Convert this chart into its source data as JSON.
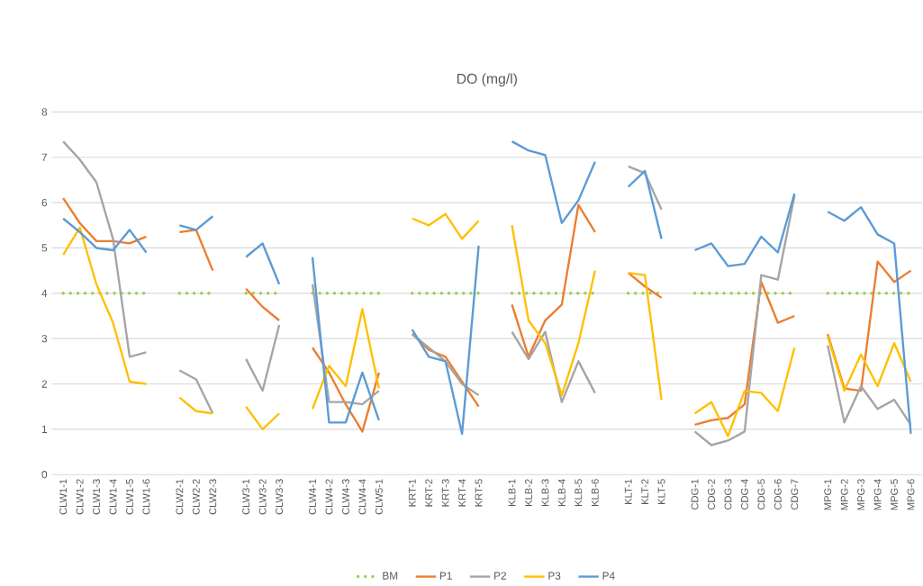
{
  "chart_data": {
    "type": "line",
    "title": "DO (mg/l)",
    "categories": [
      "CLW1-1",
      "CLW1-2",
      "CLW1-3",
      "CLW1-4",
      "CLW1-5",
      "CLW1-6",
      null,
      "CLW2-1",
      "CLW2-2",
      "CLW2-3",
      null,
      "CLW3-1",
      "CLW3-2",
      "CLW3-3",
      null,
      "CLW4-1",
      "CLW4-2",
      "CLW4-3",
      "CLW4-4",
      "CLW5-1",
      null,
      "KRT-1",
      "KRT-2",
      "KRT-3",
      "KRT-4",
      "KRT-5",
      null,
      "KLB-1",
      "KLB-2",
      "KLB-3",
      "KLB-4",
      "KLB-5",
      "KLB-6",
      null,
      "KLT-1",
      "KLT-2",
      "KLT-5",
      null,
      "CDG-1",
      "CDG-2",
      "CDG-3",
      "CDG-4",
      "CDG-5",
      "CDG-6",
      "CDG-7",
      null,
      "MPG-1",
      "MPG-2",
      "MPG-3",
      "MPG-4",
      "MPG-5",
      "MPG-6"
    ],
    "series": [
      {
        "name": "BM",
        "color": "#92d050",
        "line_style": "dotted",
        "values": [
          4,
          4,
          4,
          4,
          4,
          4,
          null,
          4,
          4,
          4,
          null,
          4,
          4,
          4,
          null,
          4,
          4,
          4,
          4,
          4,
          null,
          4,
          4,
          4,
          4,
          4,
          null,
          4,
          4,
          4,
          4,
          4,
          4,
          null,
          4,
          4,
          4,
          null,
          4,
          4,
          4,
          4,
          4,
          4,
          4,
          null,
          4,
          4,
          4,
          4,
          4,
          4
        ]
      },
      {
        "name": "P1",
        "color": "#ed7d31",
        "line_style": "solid",
        "values": [
          6.1,
          5.55,
          5.15,
          5.15,
          5.1,
          5.25,
          null,
          5.35,
          5.4,
          4.5,
          null,
          4.1,
          3.7,
          3.4,
          null,
          2.8,
          2.25,
          1.55,
          0.95,
          2.25,
          null,
          3.1,
          2.75,
          2.6,
          2.05,
          1.5,
          null,
          3.75,
          2.6,
          3.4,
          3.75,
          5.95,
          5.35,
          null,
          4.45,
          4.15,
          3.9,
          null,
          1.1,
          1.2,
          1.25,
          1.55,
          4.25,
          3.35,
          3.5,
          null,
          3.1,
          1.9,
          1.85,
          4.7,
          4.25,
          4.5
        ]
      },
      {
        "name": "P2",
        "color": "#a5a5a5",
        "line_style": "solid",
        "values": [
          7.35,
          6.95,
          6.45,
          5.2,
          2.6,
          2.7,
          null,
          2.3,
          2.1,
          1.35,
          null,
          2.55,
          1.85,
          3.3,
          null,
          4.2,
          1.6,
          1.6,
          1.55,
          1.85,
          null,
          3.1,
          2.8,
          2.5,
          2.0,
          1.75,
          null,
          3.15,
          2.55,
          3.15,
          1.6,
          2.5,
          1.8,
          null,
          6.8,
          6.65,
          5.85,
          null,
          0.95,
          0.65,
          0.75,
          0.95,
          4.4,
          4.3,
          6.15,
          null,
          2.85,
          1.15,
          1.95,
          1.45,
          1.65,
          1.1
        ]
      },
      {
        "name": "P3",
        "color": "#ffc000",
        "line_style": "solid",
        "values": [
          4.85,
          5.45,
          4.2,
          3.35,
          2.05,
          2.0,
          null,
          1.7,
          1.4,
          1.35,
          null,
          1.5,
          1.0,
          1.35,
          null,
          1.45,
          2.4,
          1.95,
          3.65,
          1.9,
          null,
          5.65,
          5.5,
          5.75,
          5.2,
          5.6,
          null,
          5.5,
          3.4,
          2.9,
          1.75,
          2.9,
          4.5,
          null,
          4.45,
          4.4,
          1.65,
          null,
          1.35,
          1.6,
          0.85,
          1.85,
          1.8,
          1.4,
          2.8,
          null,
          3.05,
          1.85,
          2.65,
          1.95,
          2.9,
          2.05
        ]
      },
      {
        "name": "P4",
        "color": "#5b9bd5",
        "line_style": "solid",
        "values": [
          5.65,
          5.35,
          5.0,
          4.95,
          5.4,
          4.9,
          null,
          5.5,
          5.4,
          5.7,
          null,
          4.8,
          5.1,
          4.2,
          null,
          4.8,
          1.15,
          1.15,
          2.25,
          1.2,
          null,
          3.2,
          2.6,
          2.5,
          0.9,
          5.05,
          null,
          7.35,
          7.15,
          7.05,
          5.55,
          6.05,
          6.9,
          null,
          6.35,
          6.7,
          5.2,
          null,
          4.95,
          5.1,
          4.6,
          4.65,
          5.25,
          4.9,
          6.2,
          null,
          5.8,
          5.6,
          5.9,
          5.3,
          5.1,
          0.9
        ]
      }
    ],
    "ylim": [
      0,
      8
    ],
    "yticks": [
      0,
      1,
      2,
      3,
      4,
      5,
      6,
      7,
      8
    ],
    "grid": "y",
    "legend": "bottom",
    "marker": "none"
  }
}
